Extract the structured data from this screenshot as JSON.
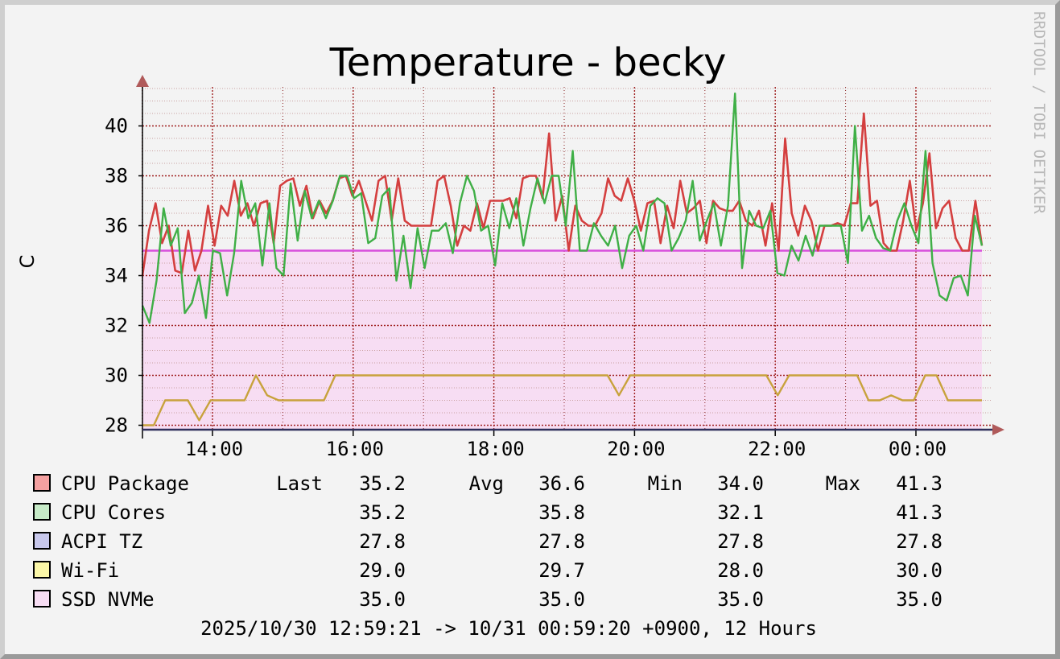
{
  "chart_data": {
    "type": "line",
    "title": "Temperature - becky",
    "ylabel": "C",
    "watermark": "RRDTOOL / TOBI OETIKER",
    "ylim": [
      27.8,
      41.3
    ],
    "y_ticks": [
      "28",
      "30",
      "32",
      "34",
      "36",
      "38",
      "40"
    ],
    "x_ticks": [
      "14:00",
      "16:00",
      "18:00",
      "20:00",
      "22:00",
      "00:00"
    ],
    "x_range": [
      "2025/10/30 12:59:21",
      "10/31 00:59:20"
    ],
    "grid": true,
    "footer": "2025/10/30 12:59:21 -> 10/31 00:59:20 +0900, 12 Hours",
    "legend_headers": {
      "last": "Last",
      "avg": "Avg",
      "min": "Min",
      "max": "Max"
    },
    "series": [
      {
        "name": "CPU Package",
        "color": "#d43f3f",
        "swatch": "#f4a0a0",
        "last": "35.2",
        "avg": "36.6",
        "min": "34.0",
        "max": "41.3",
        "values": [
          34.0,
          35.8,
          36.9,
          35.3,
          36.0,
          34.2,
          34.1,
          35.8,
          34.2,
          35.0,
          36.8,
          35.2,
          36.8,
          36.4,
          37.8,
          36.4,
          36.9,
          36.0,
          36.9,
          37.0,
          35.3,
          37.6,
          37.8,
          37.9,
          36.8,
          37.6,
          36.3,
          37.0,
          36.5,
          37.0,
          37.9,
          38.0,
          37.2,
          37.8,
          37.0,
          36.2,
          37.8,
          38.0,
          36.2,
          37.9,
          36.2,
          36.0,
          36.0,
          36.0,
          36.0,
          37.8,
          38.0,
          36.8,
          35.2,
          36.0,
          35.8,
          36.9,
          35.9,
          37.0,
          37.0,
          37.0,
          37.1,
          36.3,
          37.9,
          38.0,
          38.0,
          37.1,
          39.7,
          36.2,
          37.2,
          35.0,
          36.8,
          36.2,
          36.0,
          36.0,
          36.5,
          37.9,
          37.2,
          37.0,
          37.9,
          37.0,
          35.8,
          36.9,
          37.0,
          35.3,
          36.8,
          35.9,
          37.8,
          36.5,
          36.7,
          37.0,
          35.3,
          37.0,
          36.7,
          36.6,
          36.6,
          37.0,
          36.2,
          36.0,
          36.6,
          35.2,
          36.9,
          35.0,
          39.5,
          36.5,
          35.6,
          36.8,
          36.2,
          35.0,
          36.0,
          36.0,
          36.1,
          36.0,
          36.9,
          36.9,
          40.5,
          36.8,
          37.0,
          35.3,
          35.0,
          35.0,
          36.2,
          37.8,
          35.8,
          36.9,
          38.9,
          35.9,
          36.7,
          37.0,
          35.5,
          35.0,
          35.0,
          37.0,
          35.2
        ]
      },
      {
        "name": "CPU Cores",
        "color": "#3faf46",
        "swatch": "#c7ebc8",
        "last": "35.2",
        "avg": "35.8",
        "min": "32.1",
        "max": "41.3",
        "values": [
          32.8,
          32.1,
          33.8,
          36.7,
          35.2,
          35.9,
          32.5,
          32.9,
          34.0,
          32.3,
          35.0,
          34.9,
          33.2,
          34.9,
          37.8,
          36.3,
          36.9,
          34.4,
          36.9,
          34.3,
          34.0,
          37.7,
          35.4,
          37.4,
          36.3,
          37.0,
          36.3,
          37.0,
          38.0,
          38.0,
          37.1,
          37.3,
          35.3,
          35.5,
          37.2,
          37.5,
          33.8,
          35.6,
          33.5,
          35.9,
          34.3,
          35.8,
          35.8,
          36.1,
          34.9,
          36.9,
          38.0,
          37.4,
          35.8,
          36.0,
          34.4,
          36.9,
          35.9,
          37.1,
          35.2,
          36.7,
          37.9,
          36.9,
          38.0,
          38.0,
          36.0,
          39.0,
          35.0,
          35.0,
          36.1,
          35.6,
          35.2,
          36.0,
          34.3,
          35.6,
          36.0,
          35.0,
          36.8,
          37.1,
          36.9,
          35.0,
          35.5,
          36.2,
          37.8,
          35.4,
          36.2,
          36.9,
          35.2,
          36.8,
          41.3,
          34.3,
          36.6,
          36.0,
          35.9,
          36.6,
          34.1,
          34.0,
          35.2,
          34.6,
          35.6,
          34.8,
          36.0,
          36.0,
          36.0,
          36.0,
          34.5,
          40.0,
          35.8,
          36.4,
          35.5,
          35.1,
          35.0,
          36.2,
          36.9,
          36.0,
          35.3,
          39.0,
          34.5,
          33.2,
          33.0,
          33.9,
          34.0,
          33.2,
          36.4,
          35.2
        ]
      },
      {
        "name": "ACPI TZ",
        "color": "#2e2e8a",
        "swatch": "#c8c8ec",
        "last": "27.8",
        "avg": "27.8",
        "min": "27.8",
        "max": "27.8",
        "values": [
          27.8,
          27.8
        ]
      },
      {
        "name": "Wi-Fi",
        "color": "#c8a23c",
        "swatch": "#fbf7a8",
        "last": "29.0",
        "avg": "29.7",
        "min": "28.0",
        "max": "30.0",
        "values": [
          28.0,
          28.0,
          29.0,
          29.0,
          29.0,
          28.2,
          29.0,
          29.0,
          29.0,
          29.0,
          30.0,
          29.2,
          29.0,
          29.0,
          29.0,
          29.0,
          29.0,
          30.0,
          30.0,
          30.0,
          30.0,
          30.0,
          30.0,
          30.0,
          30.0,
          30.0,
          30.0,
          30.0,
          30.0,
          30.0,
          30.0,
          30.0,
          30.0,
          30.0,
          30.0,
          30.0,
          30.0,
          30.0,
          30.0,
          30.0,
          30.0,
          30.0,
          29.2,
          30.0,
          30.0,
          30.0,
          30.0,
          30.0,
          30.0,
          30.0,
          30.0,
          30.0,
          30.0,
          30.0,
          30.0,
          30.0,
          29.2,
          30.0,
          30.0,
          30.0,
          30.0,
          30.0,
          30.0,
          30.0,
          29.0,
          29.0,
          29.2,
          29.0,
          29.0,
          30.0,
          30.0,
          29.0,
          29.0,
          29.0,
          29.0
        ]
      },
      {
        "name": "SSD NVMe",
        "color": "#d84fdc",
        "swatch": "#f7ddf3",
        "last": "35.0",
        "avg": "35.0",
        "min": "35.0",
        "max": "35.0",
        "values": [
          35.0,
          35.0
        ]
      }
    ]
  }
}
